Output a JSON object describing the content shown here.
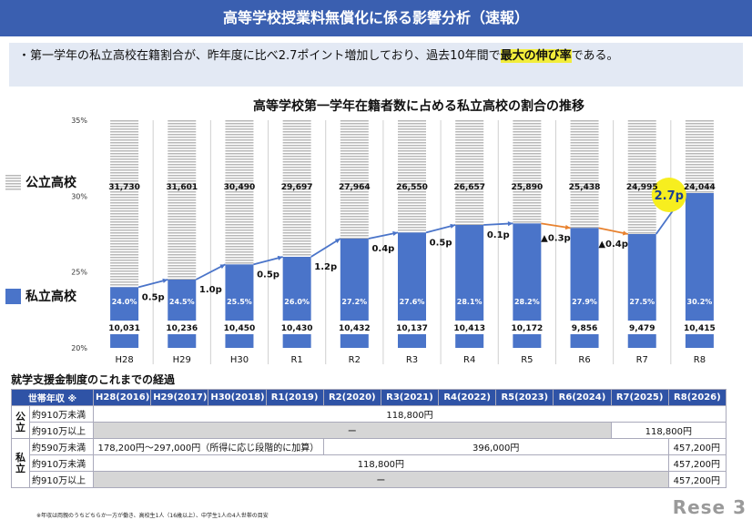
{
  "header": {
    "title": "高等学校授業料無償化に係る影響分析（速報）"
  },
  "note": {
    "text_pre": "・第一学年の私立高校在籍割合が、昨年度に比べ2.7ポイント増加しており、過去10年間で",
    "text_highlight": "最大の伸び率",
    "text_post": "である。"
  },
  "chart_data": {
    "type": "bar",
    "title": "高等学校第一学年在籍者数に占める私立高校の割合の推移",
    "categories": [
      "H28",
      "H29",
      "H30",
      "R1",
      "R2",
      "R3",
      "R4",
      "R5",
      "R6",
      "R7",
      "R8"
    ],
    "series": [
      {
        "name": "私立高校",
        "share_pct": [
          24.0,
          24.5,
          25.5,
          26.0,
          27.2,
          27.6,
          28.1,
          28.2,
          27.9,
          27.5,
          30.2
        ],
        "share_labels": [
          "24.0%",
          "24.5%",
          "25.5%",
          "26.0%",
          "27.2%",
          "27.6%",
          "28.1%",
          "28.2%",
          "27.9%",
          "27.5%",
          "30.2%"
        ],
        "counts": [
          "10,031",
          "10,236",
          "10,450",
          "10,430",
          "10,432",
          "10,137",
          "10,413",
          "10,172",
          "9,856",
          "9,479",
          "10,415"
        ]
      },
      {
        "name": "公立高校",
        "counts": [
          "31,730",
          "31,601",
          "30,490",
          "29,697",
          "27,964",
          "26,550",
          "26,657",
          "25,890",
          "25,438",
          "24,995",
          "24,044"
        ]
      }
    ],
    "changes": [
      "0.5p",
      "1.0p",
      "0.5p",
      "1.2p",
      "0.4p",
      "0.5p",
      "0.1p",
      "▲0.3p",
      "▲0.4p",
      "2.7p"
    ],
    "y_ticks": [
      "35%",
      "30%",
      "25%",
      "20%"
    ],
    "ylim": [
      20,
      35
    ],
    "colors": {
      "private": "#4a74c9",
      "public_stripe": "#b8b8b8",
      "trend_up": "#4a74c9",
      "trend_down": "#e8822f",
      "highlight": "#f7ee1f"
    }
  },
  "legend": {
    "public": "公立高校",
    "private": "私立高校"
  },
  "history": {
    "title": "就学支援金制度のこれまでの経過",
    "headers": [
      "世帯年収 ※",
      "H28(2016)",
      "H29(2017)",
      "H30(2018)",
      "R1(2019)",
      "R2(2020)",
      "R3(2021)",
      "R4(2022)",
      "R5(2023)",
      "R6(2024)",
      "R7(2025)",
      "R8(2026)"
    ],
    "groups": {
      "public": "公立",
      "private": "私立"
    },
    "rows": {
      "pub1_label": "約910万未満",
      "pub1_val": "118,800円",
      "pub2_label": "約910万以上",
      "pub2_dash": "ー",
      "pub2_val": "118,800円",
      "pri1_label": "約590万未満",
      "pri1_a": "178,200円～297,000円（所得に応じ段階的に加算）",
      "pri1_b": "396,000円",
      "pri1_c": "457,200円",
      "pri2_label": "約910万未満",
      "pri2_a": "118,800円",
      "pri2_c": "457,200円",
      "pri3_label": "約910万以上",
      "pri3_dash": "ー",
      "pri3_c": "457,200円"
    }
  },
  "footnote": "※年収は両親のうちどちらか一方が働き、高校生1人（16歳以上）、中学生1人の4人世帯の目安",
  "logo": "Rese 3"
}
